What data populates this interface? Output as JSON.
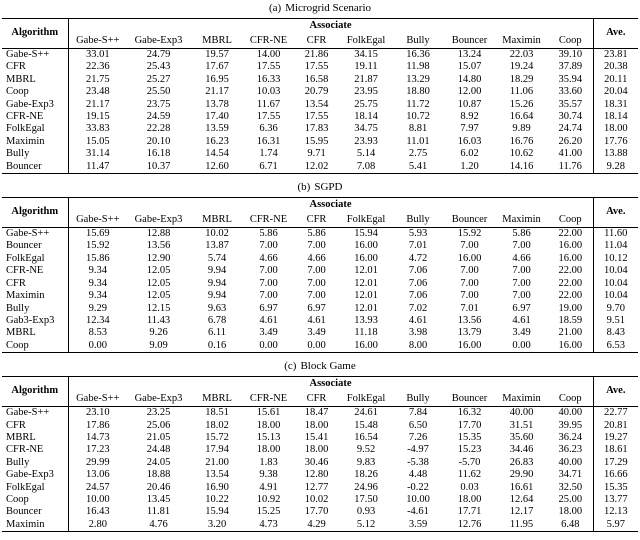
{
  "page": {
    "background_color": "#ffffff",
    "text_color": "#000000"
  },
  "columns": {
    "algorithm": "Algorithm",
    "associate_group": "Associate",
    "associates": [
      "Gabe-S++",
      "Gabe-Exp3",
      "MBRL",
      "CFR-NE",
      "CFR",
      "FolkEgal",
      "Bully",
      "Bouncer",
      "Maximin",
      "Coop"
    ],
    "average": "Ave."
  },
  "tables": [
    {
      "caption_label": "(a)",
      "caption_title": "Microgrid Scenario",
      "rows": [
        {
          "algorithm": "Gabe-S++",
          "values": [
            "33.01",
            "24.79",
            "19.57",
            "14.00",
            "21.86",
            "34.15",
            "16.36",
            "13.24",
            "22.03",
            "39.10"
          ],
          "ave": "23.81"
        },
        {
          "algorithm": "CFR",
          "values": [
            "22.36",
            "25.43",
            "17.67",
            "17.55",
            "17.55",
            "19.11",
            "11.98",
            "15.07",
            "19.24",
            "37.89"
          ],
          "ave": "20.38"
        },
        {
          "algorithm": "MBRL",
          "values": [
            "21.75",
            "25.27",
            "16.95",
            "16.33",
            "16.58",
            "21.87",
            "13.29",
            "14.80",
            "18.29",
            "35.94"
          ],
          "ave": "20.11"
        },
        {
          "algorithm": "Coop",
          "values": [
            "23.48",
            "25.50",
            "21.17",
            "10.03",
            "20.79",
            "23.95",
            "18.80",
            "12.00",
            "11.06",
            "33.60"
          ],
          "ave": "20.04"
        },
        {
          "algorithm": "Gabe-Exp3",
          "values": [
            "21.17",
            "23.75",
            "13.78",
            "11.67",
            "13.54",
            "25.75",
            "11.72",
            "10.87",
            "15.26",
            "35.57"
          ],
          "ave": "18.31"
        },
        {
          "algorithm": "CFR-NE",
          "values": [
            "19.15",
            "24.59",
            "17.40",
            "17.55",
            "17.55",
            "18.14",
            "10.72",
            "8.92",
            "16.64",
            "30.74"
          ],
          "ave": "18.14"
        },
        {
          "algorithm": "FolkEgal",
          "values": [
            "33.83",
            "22.28",
            "13.59",
            "6.36",
            "17.83",
            "34.75",
            "8.81",
            "7.97",
            "9.89",
            "24.74"
          ],
          "ave": "18.00"
        },
        {
          "algorithm": "Maximin",
          "values": [
            "15.05",
            "20.10",
            "16.23",
            "16.31",
            "15.95",
            "23.93",
            "11.01",
            "16.03",
            "16.76",
            "26.20"
          ],
          "ave": "17.76"
        },
        {
          "algorithm": "Bully",
          "values": [
            "31.14",
            "16.18",
            "14.54",
            "1.74",
            "9.71",
            "5.14",
            "2.75",
            "6.02",
            "10.62",
            "41.00"
          ],
          "ave": "13.88"
        },
        {
          "algorithm": "Bouncer",
          "values": [
            "11.47",
            "10.37",
            "12.60",
            "6.71",
            "12.02",
            "7.08",
            "5.41",
            "1.20",
            "14.16",
            "11.76"
          ],
          "ave": "9.28"
        }
      ]
    },
    {
      "caption_label": "(b)",
      "caption_title": "SGPD",
      "rows": [
        {
          "algorithm": "Gabe-S++",
          "values": [
            "15.69",
            "12.88",
            "10.02",
            "5.86",
            "5.86",
            "15.94",
            "5.93",
            "15.92",
            "5.86",
            "22.00"
          ],
          "ave": "11.60"
        },
        {
          "algorithm": "Bouncer",
          "values": [
            "15.92",
            "13.56",
            "13.87",
            "7.00",
            "7.00",
            "16.00",
            "7.01",
            "7.00",
            "7.00",
            "16.00"
          ],
          "ave": "11.04"
        },
        {
          "algorithm": "FolkEgal",
          "values": [
            "15.86",
            "12.90",
            "5.74",
            "4.66",
            "4.66",
            "16.00",
            "4.72",
            "16.00",
            "4.66",
            "16.00"
          ],
          "ave": "10.12"
        },
        {
          "algorithm": "CFR-NE",
          "values": [
            "9.34",
            "12.05",
            "9.94",
            "7.00",
            "7.00",
            "12.01",
            "7.06",
            "7.00",
            "7.00",
            "22.00"
          ],
          "ave": "10.04"
        },
        {
          "algorithm": "CFR",
          "values": [
            "9.34",
            "12.05",
            "9.94",
            "7.00",
            "7.00",
            "12.01",
            "7.06",
            "7.00",
            "7.00",
            "22.00"
          ],
          "ave": "10.04"
        },
        {
          "algorithm": "Maximin",
          "values": [
            "9.34",
            "12.05",
            "9.94",
            "7.00",
            "7.00",
            "12.01",
            "7.06",
            "7.00",
            "7.00",
            "22.00"
          ],
          "ave": "10.04"
        },
        {
          "algorithm": "Bully",
          "values": [
            "9.29",
            "12.15",
            "9.63",
            "6.97",
            "6.97",
            "12.01",
            "7.02",
            "7.01",
            "6.97",
            "19.00"
          ],
          "ave": "9.70"
        },
        {
          "algorithm": "Gab3-Exp3",
          "values": [
            "12.34",
            "11.43",
            "6.78",
            "4.61",
            "4.61",
            "13.93",
            "4.61",
            "13.56",
            "4.61",
            "18.59"
          ],
          "ave": "9.51"
        },
        {
          "algorithm": "MBRL",
          "values": [
            "8.53",
            "9.26",
            "6.11",
            "3.49",
            "3.49",
            "11.18",
            "3.98",
            "13.79",
            "3.49",
            "21.00"
          ],
          "ave": "8.43"
        },
        {
          "algorithm": "Coop",
          "values": [
            "0.00",
            "9.09",
            "0.16",
            "0.00",
            "0.00",
            "16.00",
            "8.00",
            "16.00",
            "0.00",
            "16.00"
          ],
          "ave": "6.53"
        }
      ]
    },
    {
      "caption_label": "(c)",
      "caption_title": "Block Game",
      "rows": [
        {
          "algorithm": "Gabe-S++",
          "values": [
            "23.10",
            "23.25",
            "18.51",
            "15.61",
            "18.47",
            "24.61",
            "7.84",
            "16.32",
            "40.00",
            "40.00"
          ],
          "ave": "22.77"
        },
        {
          "algorithm": "CFR",
          "values": [
            "17.86",
            "25.06",
            "18.02",
            "18.00",
            "18.00",
            "15.48",
            "6.50",
            "17.70",
            "31.51",
            "39.95"
          ],
          "ave": "20.81"
        },
        {
          "algorithm": "MBRL",
          "values": [
            "14.73",
            "21.05",
            "15.72",
            "15.13",
            "15.41",
            "16.54",
            "7.26",
            "15.35",
            "35.60",
            "36.24"
          ],
          "ave": "19.27"
        },
        {
          "algorithm": "CFR-NE",
          "values": [
            "17.23",
            "24.48",
            "17.94",
            "18.00",
            "18.00",
            "9.52",
            "-4.97",
            "15.23",
            "34.46",
            "36.23"
          ],
          "ave": "18.61"
        },
        {
          "algorithm": "Bully",
          "values": [
            "29.99",
            "24.05",
            "21.00",
            "1.83",
            "30.46",
            "9.83",
            "-5.38",
            "-5.70",
            "26.83",
            "40.00"
          ],
          "ave": "17.29"
        },
        {
          "algorithm": "Gabe-Exp3",
          "values": [
            "13.06",
            "18.88",
            "13.54",
            "9.38",
            "12.80",
            "18.26",
            "4.48",
            "11.62",
            "29.90",
            "34.71"
          ],
          "ave": "16.66"
        },
        {
          "algorithm": "FolkEgal",
          "values": [
            "24.57",
            "20.46",
            "16.90",
            "4.91",
            "12.77",
            "24.96",
            "-0.22",
            "0.03",
            "16.61",
            "32.50"
          ],
          "ave": "15.35"
        },
        {
          "algorithm": "Coop",
          "values": [
            "10.00",
            "13.45",
            "10.22",
            "10.92",
            "10.02",
            "17.50",
            "10.00",
            "18.00",
            "12.64",
            "25.00"
          ],
          "ave": "13.77"
        },
        {
          "algorithm": "Bouncer",
          "values": [
            "16.43",
            "11.81",
            "15.94",
            "15.25",
            "17.70",
            "0.93",
            "-4.61",
            "17.71",
            "12.17",
            "18.00"
          ],
          "ave": "12.13"
        },
        {
          "algorithm": "Maximin",
          "values": [
            "2.80",
            "4.76",
            "3.20",
            "4.73",
            "4.29",
            "5.12",
            "3.59",
            "12.76",
            "11.95",
            "6.48"
          ],
          "ave": "5.97"
        }
      ]
    }
  ]
}
